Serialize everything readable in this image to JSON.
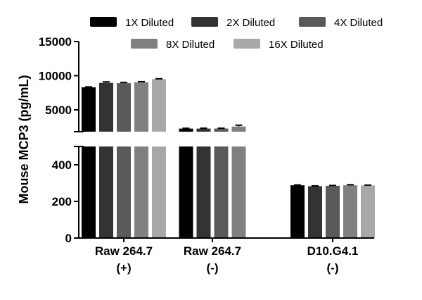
{
  "chart_data": {
    "type": "bar",
    "ylabel": "Mouse MCP3 (pg/mL)",
    "categories": [
      {
        "line1": "Raw 264.7",
        "line2": "(+)"
      },
      {
        "line1": "Raw 264.7",
        "line2": "(-)"
      },
      {
        "line1": "D10.G4.1",
        "line2": "(-)"
      }
    ],
    "series": [
      {
        "name": "1X Diluted",
        "color": "#000000",
        "values": [
          8300,
          2250,
          288
        ],
        "errors": [
          60,
          50,
          2
        ]
      },
      {
        "name": "2X Diluted",
        "color": "#333333",
        "values": [
          8950,
          2250,
          283
        ],
        "errors": [
          150,
          60,
          2
        ]
      },
      {
        "name": "4X Diluted",
        "color": "#5a5a5a",
        "values": [
          8900,
          2260,
          285
        ],
        "errors": [
          100,
          50,
          2
        ]
      },
      {
        "name": "8X Diluted",
        "color": "#808080",
        "values": [
          9050,
          2550,
          288
        ],
        "errors": [
          80,
          200,
          3
        ]
      },
      {
        "name": "16X Diluted",
        "color": "#a8a8a8",
        "values": [
          9500,
          null,
          287
        ],
        "errors": [
          50,
          null,
          2
        ]
      }
    ],
    "y_axis_broken": true,
    "y_segments": [
      {
        "range": [
          0,
          500
        ],
        "ticks": [
          0,
          200,
          400
        ]
      },
      {
        "range": [
          1800,
          15000
        ],
        "ticks": [
          5000,
          10000,
          15000
        ]
      }
    ],
    "legend": {
      "position": "top",
      "rows": [
        [
          0,
          1,
          2
        ],
        [
          3,
          4
        ]
      ]
    }
  }
}
